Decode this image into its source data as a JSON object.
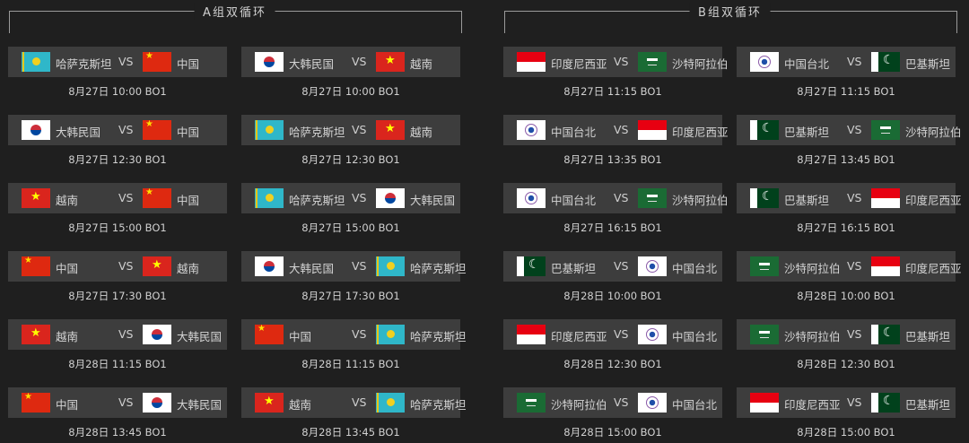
{
  "groups": [
    {
      "title": "A组双循环",
      "columns": [
        [
          {
            "team1": "哈萨克斯坦",
            "flag1": "kz",
            "team2": "中国",
            "flag2": "cn",
            "time": "8月27日 10:00 BO1"
          },
          {
            "team1": "大韩民国",
            "flag1": "kr",
            "team2": "中国",
            "flag2": "cn",
            "time": "8月27日 12:30 BO1"
          },
          {
            "team1": "越南",
            "flag1": "vn",
            "team2": "中国",
            "flag2": "cn",
            "time": "8月27日 15:00 BO1"
          },
          {
            "team1": "中国",
            "flag1": "cn",
            "team2": "越南",
            "flag2": "vn",
            "time": "8月27日 17:30 BO1"
          },
          {
            "team1": "越南",
            "flag1": "vn",
            "team2": "大韩民国",
            "flag2": "kr",
            "time": "8月28日 11:15 BO1"
          },
          {
            "team1": "中国",
            "flag1": "cn",
            "team2": "大韩民国",
            "flag2": "kr",
            "time": "8月28日 13:45 BO1"
          }
        ],
        [
          {
            "team1": "大韩民国",
            "flag1": "kr",
            "team2": "越南",
            "flag2": "vn",
            "time": "8月27日 10:00 BO1"
          },
          {
            "team1": "哈萨克斯坦",
            "flag1": "kz",
            "team2": "越南",
            "flag2": "vn",
            "time": "8月27日 12:30 BO1"
          },
          {
            "team1": "哈萨克斯坦",
            "flag1": "kz",
            "team2": "大韩民国",
            "flag2": "kr",
            "time": "8月27日 15:00 BO1"
          },
          {
            "team1": "大韩民国",
            "flag1": "kr",
            "team2": "哈萨克斯坦",
            "flag2": "kz",
            "time": "8月27日 17:30 BO1"
          },
          {
            "team1": "中国",
            "flag1": "cn",
            "team2": "哈萨克斯坦",
            "flag2": "kz",
            "time": "8月28日 11:15 BO1"
          },
          {
            "team1": "越南",
            "flag1": "vn",
            "team2": "哈萨克斯坦",
            "flag2": "kz",
            "time": "8月28日 13:45 BO1"
          }
        ]
      ]
    },
    {
      "title": "B组双循环",
      "columns": [
        [
          {
            "team1": "印度尼西亚",
            "flag1": "id",
            "team2": "沙特阿拉伯",
            "flag2": "sa",
            "time": "8月27日 11:15 BO1"
          },
          {
            "team1": "中国台北",
            "flag1": "tpe",
            "team2": "印度尼西亚",
            "flag2": "id",
            "time": "8月27日 13:35 BO1"
          },
          {
            "team1": "中国台北",
            "flag1": "tpe",
            "team2": "沙特阿拉伯",
            "flag2": "sa",
            "time": "8月27日 16:15 BO1"
          },
          {
            "team1": "巴基斯坦",
            "flag1": "pk",
            "team2": "中国台北",
            "flag2": "tpe",
            "time": "8月28日 10:00 BO1"
          },
          {
            "team1": "印度尼西亚",
            "flag1": "id",
            "team2": "中国台北",
            "flag2": "tpe",
            "time": "8月28日 12:30 BO1"
          },
          {
            "team1": "沙特阿拉伯",
            "flag1": "sa",
            "team2": "中国台北",
            "flag2": "tpe",
            "time": "8月28日 15:00 BO1"
          }
        ],
        [
          {
            "team1": "中国台北",
            "flag1": "tpe",
            "team2": "巴基斯坦",
            "flag2": "pk",
            "time": "8月27日 11:15 BO1"
          },
          {
            "team1": "巴基斯坦",
            "flag1": "pk",
            "team2": "沙特阿拉伯",
            "flag2": "sa",
            "time": "8月27日 13:45 BO1"
          },
          {
            "team1": "巴基斯坦",
            "flag1": "pk",
            "team2": "印度尼西亚",
            "flag2": "id",
            "time": "8月27日 16:15 BO1"
          },
          {
            "team1": "沙特阿拉伯",
            "flag1": "sa",
            "team2": "印度尼西亚",
            "flag2": "id",
            "time": "8月28日 10:00 BO1"
          },
          {
            "team1": "沙特阿拉伯",
            "flag1": "sa",
            "team2": "巴基斯坦",
            "flag2": "pk",
            "time": "8月28日 12:30 BO1"
          },
          {
            "team1": "印度尼西亚",
            "flag1": "id",
            "team2": "巴基斯坦",
            "flag2": "pk",
            "time": "8月28日 15:00 BO1"
          }
        ]
      ]
    }
  ],
  "vs_label": "VS"
}
